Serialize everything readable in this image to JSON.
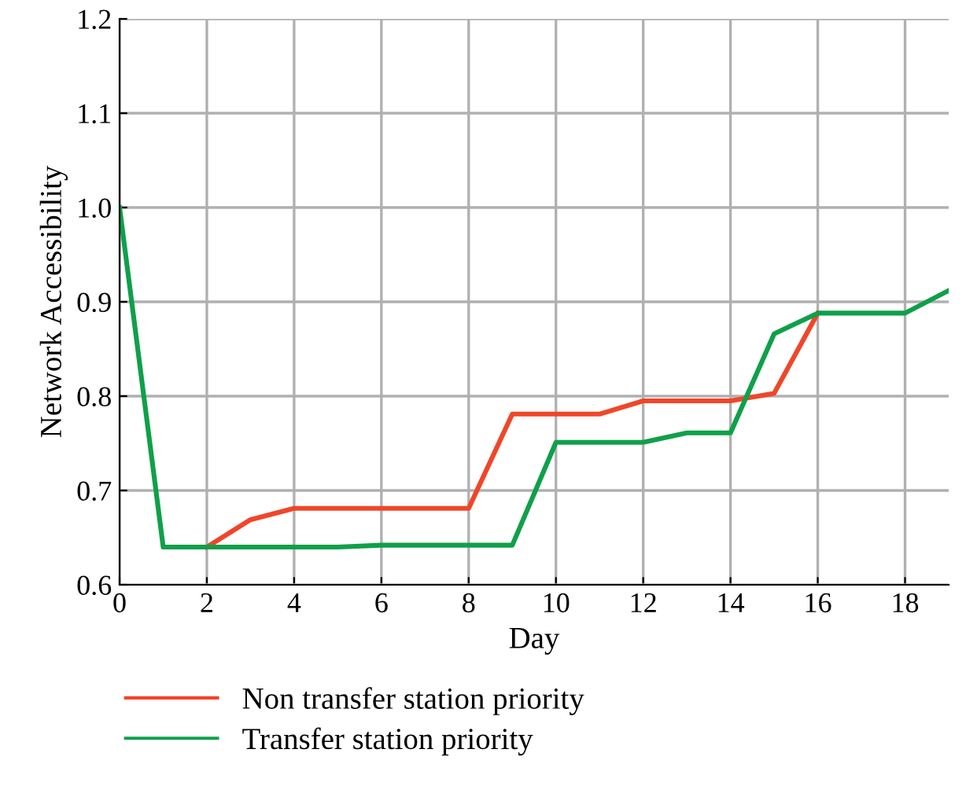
{
  "chart_data": {
    "type": "line",
    "xlabel": "Day",
    "ylabel": "Network Accessibility",
    "xlim": [
      0,
      19
    ],
    "xticks": [
      0,
      2,
      4,
      6,
      8,
      10,
      12,
      14,
      16,
      18
    ],
    "ylim": [
      0.6,
      1.2
    ],
    "yticks": [
      {
        "value": 0.6,
        "label": "0.6"
      },
      {
        "value": 0.7,
        "label": "0.7"
      },
      {
        "value": 0.8,
        "label": "0.8"
      },
      {
        "value": 0.9,
        "label": "0.9"
      },
      {
        "value": 1.0,
        "label": "1.0"
      },
      {
        "value": 1.1,
        "label": "1.1"
      },
      {
        "value": 1.2,
        "label": "1.2"
      }
    ],
    "grid": true,
    "legend": "bottom left",
    "marker": "none",
    "line_style": "solid",
    "series": [
      {
        "name": "Non transfer station priority",
        "color": "#f0462a",
        "x": [
          2,
          3,
          4,
          5,
          6,
          7,
          8,
          9,
          10,
          11,
          12,
          13,
          14,
          15,
          16
        ],
        "values": [
          0.64,
          0.669,
          0.681,
          0.681,
          0.681,
          0.681,
          0.681,
          0.781,
          0.781,
          0.781,
          0.795,
          0.795,
          0.795,
          0.803,
          0.888
        ]
      },
      {
        "name": "Transfer station priority",
        "color": "#0fa04a",
        "x": [
          0,
          1,
          2,
          3,
          4,
          5,
          6,
          7,
          8,
          9,
          10,
          11,
          12,
          13,
          14,
          15,
          16,
          17,
          18,
          19
        ],
        "values": [
          1.0,
          0.64,
          0.64,
          0.64,
          0.64,
          0.64,
          0.642,
          0.642,
          0.642,
          0.642,
          0.751,
          0.751,
          0.751,
          0.761,
          0.761,
          0.866,
          0.888,
          0.888,
          0.888,
          0.912
        ]
      }
    ]
  }
}
